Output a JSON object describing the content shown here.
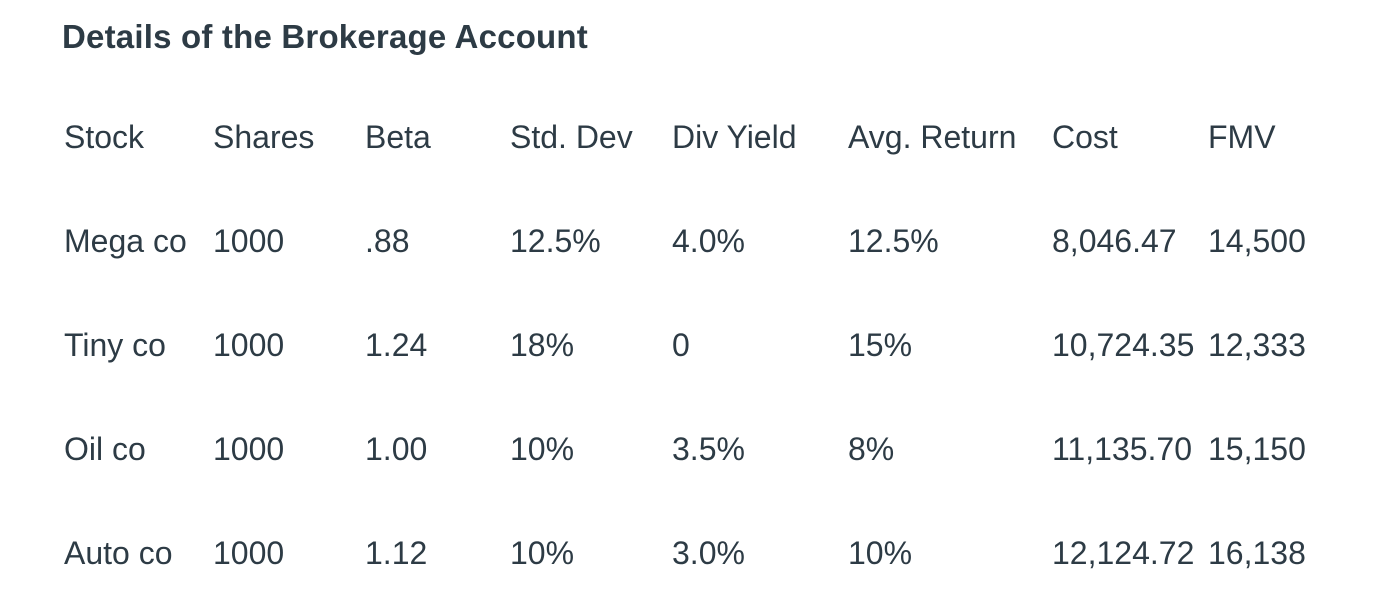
{
  "title": "Details of the Brokerage Account",
  "table": {
    "columns": [
      "Stock",
      "Shares",
      "Beta",
      "Std. Dev",
      "Div Yield",
      "Avg. Return",
      "Cost",
      "FMV"
    ],
    "rows": [
      [
        "Mega co",
        "1000",
        ".88",
        "12.5%",
        "4.0%",
        "12.5%",
        "8,046.47",
        "14,500"
      ],
      [
        "Tiny co",
        "1000",
        "1.24",
        "18%",
        "0",
        "15%",
        "10,724.35",
        "12,333"
      ],
      [
        "Oil co",
        "1000",
        "1.00",
        "10%",
        "3.5%",
        "8%",
        "11,135.70",
        "15,150"
      ],
      [
        "Auto co",
        "1000",
        "1.12",
        "10%",
        "3.0%",
        "10%",
        "12,124.72",
        "16,138"
      ]
    ]
  },
  "colors": {
    "text": "#2D3B45",
    "background": "#FFFFFF"
  }
}
